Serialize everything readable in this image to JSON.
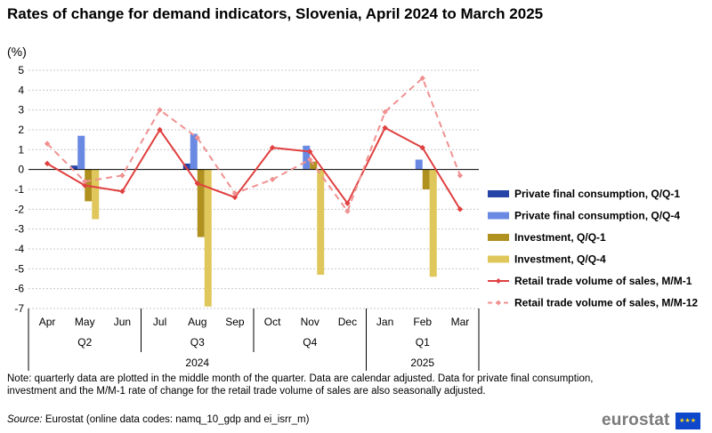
{
  "title": "Rates of change for demand indicators, Slovenia, April 2024 to March 2025",
  "unit": "(%)",
  "note": "Note: quarterly data are plotted in the middle month of the quarter. Data are calendar adjusted. Data for private final consumption, investment and the M/M-1 rate of change for the retail trade volume of sales are also seasonally adjusted.",
  "source_label": "Source:",
  "source_text": " Eurostat (online data codes: namq_10_gdp and ei_isrr_m)",
  "logo": {
    "text": "eurostat",
    "flag_icon": "eu-flag-icon"
  },
  "chart_data": {
    "type": "bar",
    "categories": [
      "Apr",
      "May",
      "Jun",
      "Jul",
      "Aug",
      "Sep",
      "Oct",
      "Nov",
      "Dec",
      "Jan",
      "Feb",
      "Mar"
    ],
    "quarters": [
      "Q2",
      "Q3",
      "Q4",
      "Q1"
    ],
    "years": [
      "2024",
      "2025"
    ],
    "ylim": [
      -7,
      5
    ],
    "yticks": [
      5,
      4,
      3,
      2,
      1,
      0,
      -1,
      -2,
      -3,
      -4,
      -5,
      -6,
      -7
    ],
    "grid": true,
    "legend_position": "right",
    "bar_series": [
      {
        "name": "Private final consumption, Q/Q-1",
        "color": "#2644a7",
        "values": [
          null,
          0.2,
          null,
          null,
          0.3,
          null,
          null,
          0.0,
          null,
          null,
          0.0,
          null
        ]
      },
      {
        "name": "Private final consumption, Q/Q-4",
        "color": "#6a89e3",
        "values": [
          null,
          1.7,
          null,
          null,
          1.8,
          null,
          null,
          1.2,
          null,
          null,
          0.5,
          null
        ]
      },
      {
        "name": "Investment, Q/Q-1",
        "color": "#b09120",
        "values": [
          null,
          -1.6,
          null,
          null,
          -3.4,
          null,
          null,
          0.4,
          null,
          null,
          -1.0,
          null
        ]
      },
      {
        "name": "Investment, Q/Q-4",
        "color": "#e0c75b",
        "values": [
          null,
          -2.5,
          null,
          null,
          -6.9,
          null,
          null,
          -5.3,
          null,
          null,
          -5.4,
          null
        ]
      }
    ],
    "line_series": [
      {
        "name": "Retail trade volume of sales, M/M-1",
        "color": "#e04040",
        "dashed": false,
        "values": [
          0.3,
          -0.8,
          -1.1,
          2.0,
          -0.7,
          -1.4,
          1.1,
          0.9,
          -1.7,
          2.1,
          1.1,
          -2.0
        ]
      },
      {
        "name": "Retail trade volume of sales, M/M-12",
        "color": "#f09191",
        "dashed": true,
        "values": [
          1.3,
          -0.6,
          -0.3,
          3.0,
          1.6,
          -1.2,
          -0.5,
          0.5,
          -2.1,
          2.9,
          4.6,
          -0.3
        ]
      }
    ]
  }
}
